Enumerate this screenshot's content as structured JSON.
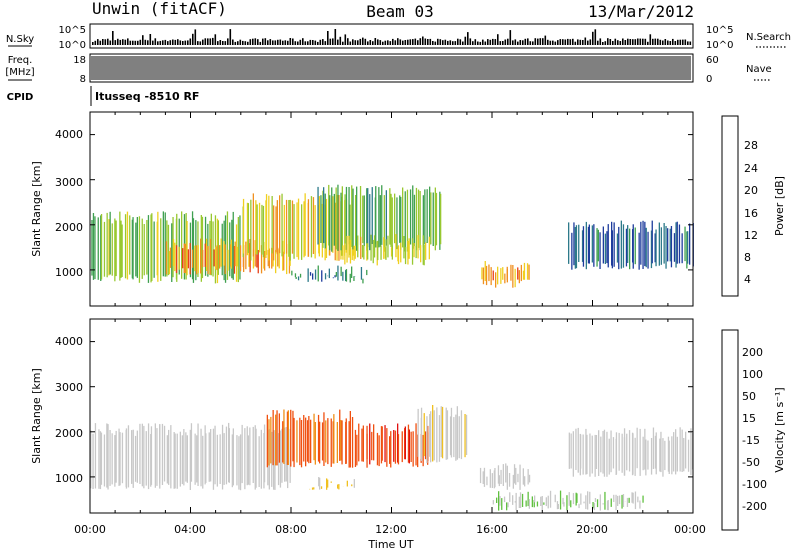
{
  "header": {
    "station": "Unwin (fitACF)",
    "beam": "Beam 03",
    "date": "13/Mar/2012"
  },
  "top_strip": {
    "nsky_label": "N.Sky",
    "nsky_ticks": [
      "10^5",
      "10^0"
    ],
    "nsearch_label": "N.Search",
    "freq_label_1": "Freq.",
    "freq_label_2": "[MHz]",
    "freq_ticks": [
      "18",
      "8"
    ],
    "nave_label": "Nave",
    "nave_ticks": [
      "60",
      "0"
    ],
    "cpid_label": "CPID",
    "cpid_text": "Itusseq -8510 RF"
  },
  "power_panel": {
    "ylabel": "Slant Range [km]",
    "yticks": [
      "4000",
      "3000",
      "2000",
      "1000"
    ],
    "colorbar_label": "Power [dB]",
    "colorbar_ticks": [
      "28",
      "24",
      "20",
      "16",
      "12",
      "8",
      "4"
    ]
  },
  "velocity_panel": {
    "ylabel": "Slant Range [km]",
    "yticks": [
      "4000",
      "3000",
      "2000",
      "1000"
    ],
    "colorbar_label": "Velocity [m s⁻¹]",
    "colorbar_ticks": [
      "200",
      "100",
      "50",
      "15",
      "-15",
      "-50",
      "-100",
      "-200"
    ]
  },
  "xaxis": {
    "label": "Time UT",
    "ticks": [
      "00:00",
      "04:00",
      "08:00",
      "12:00",
      "16:00",
      "20:00",
      "00:00"
    ]
  },
  "colors": {
    "power_scale": [
      "#0000ff",
      "#1e3c9c",
      "#2d7a8a",
      "#3fa050",
      "#98c830",
      "#f0d020",
      "#f09020",
      "#e84018",
      "#e01010"
    ],
    "velocity_scale": [
      "#e01010",
      "#f05010",
      "#f09018",
      "#f0c020",
      "#c8c8c8",
      "#c8c8c8",
      "#60c040",
      "#2d8060",
      "#2040a0",
      "#2030c0"
    ]
  },
  "chart_data": [
    {
      "type": "heatmap",
      "title": "Power",
      "xlabel": "Time UT",
      "ylabel": "Slant Range [km]",
      "xlim": [
        0,
        24
      ],
      "ylim": [
        200,
        4500
      ],
      "colorbar": {
        "label": "Power [dB]",
        "range": [
          0,
          30
        ]
      },
      "regions": [
        {
          "t_start": 0.0,
          "t_end": 6.0,
          "range_low": 700,
          "range_high": 2300,
          "power_db": 14
        },
        {
          "t_start": 3.0,
          "t_end": 8.0,
          "range_low": 900,
          "range_high": 1700,
          "power_db": 22
        },
        {
          "t_start": 6.0,
          "t_end": 10.5,
          "range_low": 1200,
          "range_high": 2700,
          "power_db": 18
        },
        {
          "t_start": 8.0,
          "t_end": 11.0,
          "range_low": 700,
          "range_high": 1100,
          "power_db": 9
        },
        {
          "t_start": 9.0,
          "t_end": 14.0,
          "range_low": 1400,
          "range_high": 2900,
          "power_db": 12
        },
        {
          "t_start": 10.0,
          "t_end": 13.5,
          "range_low": 1100,
          "range_high": 1800,
          "power_db": 17
        },
        {
          "t_start": 15.5,
          "t_end": 17.5,
          "range_low": 600,
          "range_high": 1200,
          "power_db": 22
        },
        {
          "t_start": 19.0,
          "t_end": 24.0,
          "range_low": 1000,
          "range_high": 2100,
          "power_db": 6
        }
      ]
    },
    {
      "type": "heatmap",
      "title": "Velocity",
      "xlabel": "Time UT",
      "ylabel": "Slant Range [km]",
      "xlim": [
        0,
        24
      ],
      "ylim": [
        200,
        4500
      ],
      "colorbar": {
        "label": "Velocity [m s⁻¹]",
        "range": [
          -250,
          250
        ]
      },
      "regions": [
        {
          "t_start": 0.0,
          "t_end": 8.0,
          "range_low": 700,
          "range_high": 2200,
          "velocity": 0
        },
        {
          "t_start": 7.0,
          "t_end": 10.5,
          "range_low": 1200,
          "range_high": 2500,
          "velocity": -180
        },
        {
          "t_start": 8.5,
          "t_end": 10.5,
          "range_low": 700,
          "range_high": 1000,
          "velocity": -70
        },
        {
          "t_start": 10.5,
          "t_end": 13.5,
          "range_low": 1200,
          "range_high": 2200,
          "velocity": -200
        },
        {
          "t_start": 13.0,
          "t_end": 15.0,
          "range_low": 1300,
          "range_high": 2600,
          "velocity": -40
        },
        {
          "t_start": 15.5,
          "t_end": 17.5,
          "range_low": 700,
          "range_high": 1300,
          "velocity": 0
        },
        {
          "t_start": 19.0,
          "t_end": 24.0,
          "range_low": 1000,
          "range_high": 2100,
          "velocity": 0
        },
        {
          "t_start": 16.0,
          "t_end": 22.0,
          "range_low": 250,
          "range_high": 700,
          "velocity": 40
        }
      ]
    }
  ]
}
